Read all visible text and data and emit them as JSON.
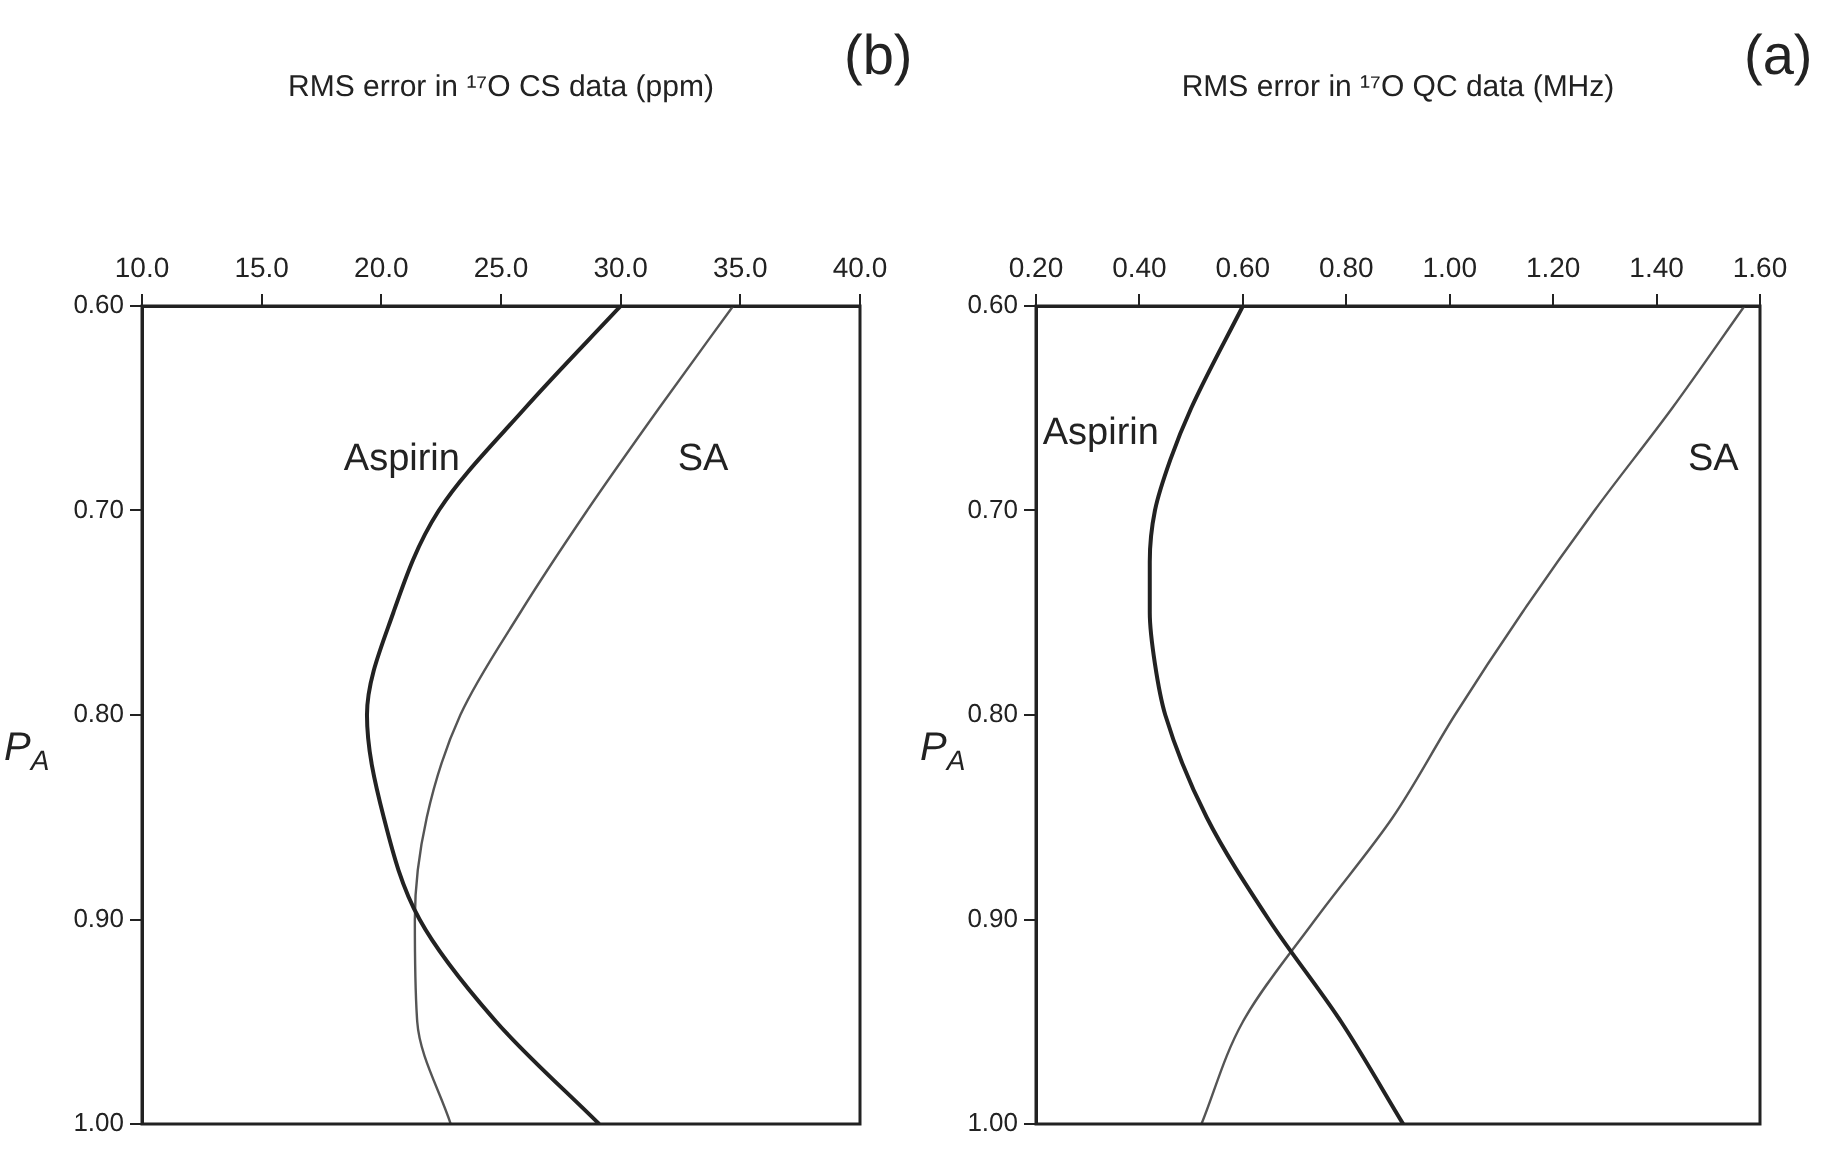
{
  "chart_data": [
    {
      "type": "line",
      "title": "(a)",
      "ylabel": "P$_{A}$",
      "xlabel": "RMS error in ¹⁷O QC data (MHz)",
      "ylim": [
        1.0,
        0.6
      ],
      "yticks": [
        {
          "value": 0.6,
          "label": "0.60"
        },
        {
          "value": 0.7,
          "label": "0.70"
        },
        {
          "value": 0.8,
          "label": "0.80"
        },
        {
          "value": 0.9,
          "label": "0.90"
        },
        {
          "value": 1.0,
          "label": "1.00"
        }
      ],
      "xlim": [
        0.2,
        1.6
      ],
      "xticks": [
        {
          "value": 0.2,
          "label": "0.20"
        },
        {
          "value": 0.4,
          "label": "0.40"
        },
        {
          "value": 0.6,
          "label": "0.60"
        },
        {
          "value": 0.8,
          "label": "0.80"
        },
        {
          "value": 1.0,
          "label": "1.00"
        },
        {
          "value": 1.2,
          "label": "1.20"
        },
        {
          "value": 1.4,
          "label": "1.40"
        },
        {
          "value": 1.6,
          "label": "1.60"
        }
      ],
      "grid": false,
      "legend": false,
      "marker": "none",
      "line_style": "solid",
      "series": [
        {
          "name": "Aspirin",
          "color": "#222222",
          "values": [
            0.6,
            0.65,
            0.675,
            0.7,
            0.725,
            0.75,
            0.775,
            0.8,
            0.85,
            0.9,
            0.95,
            1.0
          ],
          "x": [
            0.6,
            0.5,
            0.46,
            0.43,
            0.42,
            0.42,
            0.43,
            0.45,
            0.53,
            0.65,
            0.79,
            0.91
          ]
        },
        {
          "name": "SA",
          "color": "#555555",
          "values": [
            0.6,
            0.65,
            0.7,
            0.75,
            0.8,
            0.85,
            0.9,
            0.95,
            1.0
          ],
          "x": [
            1.57,
            1.43,
            1.28,
            1.14,
            1.01,
            0.89,
            0.74,
            0.6,
            0.52
          ]
        }
      ]
    },
    {
      "type": "line",
      "title": "(b)",
      "ylabel": "P$_{A}$",
      "xlabel": "RMS error in ¹⁷O CS data (ppm)",
      "ylim": [
        1.0,
        0.6
      ],
      "yticks": [
        {
          "value": 0.6,
          "label": "0.60"
        },
        {
          "value": 0.7,
          "label": "0.70"
        },
        {
          "value": 0.8,
          "label": "0.80"
        },
        {
          "value": 0.9,
          "label": "0.90"
        },
        {
          "value": 1.0,
          "label": "1.00"
        }
      ],
      "xlim": [
        10,
        40
      ],
      "xticks": [
        {
          "value": 10,
          "label": "10.0"
        },
        {
          "value": 15,
          "label": "15.0"
        },
        {
          "value": 20,
          "label": "20.0"
        },
        {
          "value": 25,
          "label": "25.0"
        },
        {
          "value": 30,
          "label": "30.0"
        },
        {
          "value": 35,
          "label": "35.0"
        },
        {
          "value": 40,
          "label": "40.0"
        }
      ],
      "grid": false,
      "legend": false,
      "marker": "none",
      "line_style": "solid",
      "series": [
        {
          "name": "Aspirin",
          "color": "#222222",
          "values": [
            0.6,
            0.65,
            0.7,
            0.75,
            0.8,
            0.85,
            0.9,
            0.95,
            1.0
          ],
          "x": [
            30.0,
            26.0,
            22.4,
            20.5,
            19.4,
            20.1,
            21.6,
            24.8,
            29.1
          ]
        },
        {
          "name": "SA",
          "color": "#555555",
          "values": [
            0.6,
            0.65,
            0.7,
            0.75,
            0.8,
            0.85,
            0.9,
            0.95,
            1.0
          ],
          "x": [
            34.7,
            31.6,
            28.6,
            25.8,
            23.3,
            21.9,
            21.4,
            21.5,
            22.9
          ]
        }
      ]
    }
  ]
}
